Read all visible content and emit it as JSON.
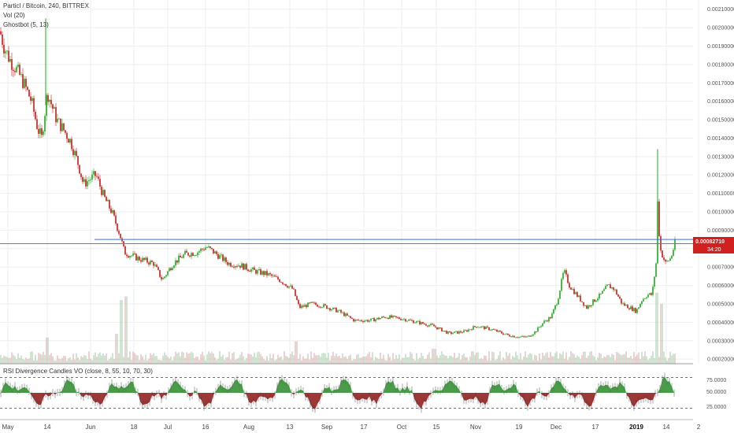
{
  "legend": {
    "title": "Particl / Bitcoin, 240, BITTREX",
    "vol": "Vol (20)",
    "ghost": "Ghostbot (5, 13)"
  },
  "indicator": {
    "title": "RSI Divergence Candles VO (close, 8, 55, 10, 70, 30)",
    "levels": [
      "75.0000",
      "50.0000",
      "25.0000"
    ]
  },
  "price_badge": {
    "price": "0.00082710",
    "countdown": "34:20"
  },
  "colors": {
    "up": "#1fa81f",
    "down": "#c41a1a",
    "grid": "#eeeeee",
    "support": "#3f6fd8",
    "current": "#e05050",
    "badge": "#d02020"
  },
  "chart_data": {
    "type": "candlestick",
    "y_ticks": [
      "0.00210000",
      "0.00200000",
      "0.00190000",
      "0.00180000",
      "0.00170000",
      "0.00160000",
      "0.00150000",
      "0.00140000",
      "0.00130000",
      "0.00120000",
      "0.00110000",
      "0.00100000",
      "0.00090000",
      "0.00080000",
      "0.00070000",
      "0.00060000",
      "0.00050000",
      "0.00040000",
      "0.00030000",
      "0.00020000"
    ],
    "ylim": [
      0.000175,
      0.00215
    ],
    "x_ticks": [
      "May",
      "14",
      "Jun",
      "18",
      "Jul",
      "16",
      "Aug",
      "13",
      "Sep",
      "17",
      "Oct",
      "15",
      "Nov",
      "19",
      "Dec",
      "17",
      "2019",
      "14",
      "2"
    ],
    "support_level": 0.00085,
    "current_price": 0.0008271,
    "price_path": [
      [
        0,
        0.00198
      ],
      [
        5,
        0.0019
      ],
      [
        12,
        0.00183
      ],
      [
        20,
        0.00178
      ],
      [
        30,
        0.0017
      ],
      [
        40,
        0.0016
      ],
      [
        48,
        0.00145
      ],
      [
        53,
        0.0014
      ],
      [
        60,
        0.00165
      ],
      [
        64,
        0.0016
      ],
      [
        72,
        0.0015
      ],
      [
        80,
        0.00145
      ],
      [
        90,
        0.00138
      ],
      [
        100,
        0.00125
      ],
      [
        106,
        0.00115
      ],
      [
        115,
        0.00118
      ],
      [
        122,
        0.0012
      ],
      [
        132,
        0.00108
      ],
      [
        142,
        0.001
      ],
      [
        152,
        0.00088
      ],
      [
        158,
        0.00078
      ],
      [
        168,
        0.00076
      ],
      [
        180,
        0.00074
      ],
      [
        195,
        0.00072
      ],
      [
        206,
        0.00063
      ],
      [
        220,
        0.00072
      ],
      [
        235,
        0.00077
      ],
      [
        250,
        0.00078
      ],
      [
        262,
        0.00081
      ],
      [
        275,
        0.00077
      ],
      [
        290,
        0.00072
      ],
      [
        305,
        0.00071
      ],
      [
        322,
        0.00068
      ],
      [
        340,
        0.00066
      ],
      [
        355,
        0.00063
      ],
      [
        372,
        0.00058
      ],
      [
        380,
        0.00048
      ],
      [
        395,
        0.0005
      ],
      [
        410,
        0.00049
      ],
      [
        430,
        0.00046
      ],
      [
        450,
        0.00041
      ],
      [
        470,
        0.00041
      ],
      [
        490,
        0.00043
      ],
      [
        510,
        0.00042
      ],
      [
        530,
        0.0004
      ],
      [
        550,
        0.00038
      ],
      [
        570,
        0.00034
      ],
      [
        590,
        0.00035
      ],
      [
        605,
        0.00038
      ],
      [
        625,
        0.00036
      ],
      [
        645,
        0.00033
      ],
      [
        660,
        0.00032
      ],
      [
        670,
        0.00032
      ],
      [
        680,
        0.00035
      ],
      [
        690,
        0.0004
      ],
      [
        700,
        0.00043
      ],
      [
        708,
        0.00052
      ],
      [
        716,
        0.00068
      ],
      [
        723,
        0.0006
      ],
      [
        732,
        0.00055
      ],
      [
        745,
        0.00048
      ],
      [
        755,
        0.00052
      ],
      [
        763,
        0.00055
      ],
      [
        772,
        0.0006
      ],
      [
        780,
        0.00058
      ],
      [
        790,
        0.0005
      ],
      [
        800,
        0.00048
      ],
      [
        808,
        0.00046
      ],
      [
        815,
        0.00052
      ],
      [
        822,
        0.00055
      ],
      [
        828,
        0.00055
      ],
      [
        833,
        0.00072
      ],
      [
        835,
        0.00105
      ],
      [
        838,
        0.0008
      ],
      [
        845,
        0.00072
      ],
      [
        852,
        0.00075
      ],
      [
        857,
        0.00083
      ]
    ],
    "volume_spikes": [
      [
        60,
        0.35
      ],
      [
        148,
        0.4
      ],
      [
        154,
        0.85
      ],
      [
        160,
        0.9
      ],
      [
        376,
        0.3
      ],
      [
        551,
        0.2
      ],
      [
        834,
        0.95
      ],
      [
        840,
        0.8
      ]
    ]
  }
}
